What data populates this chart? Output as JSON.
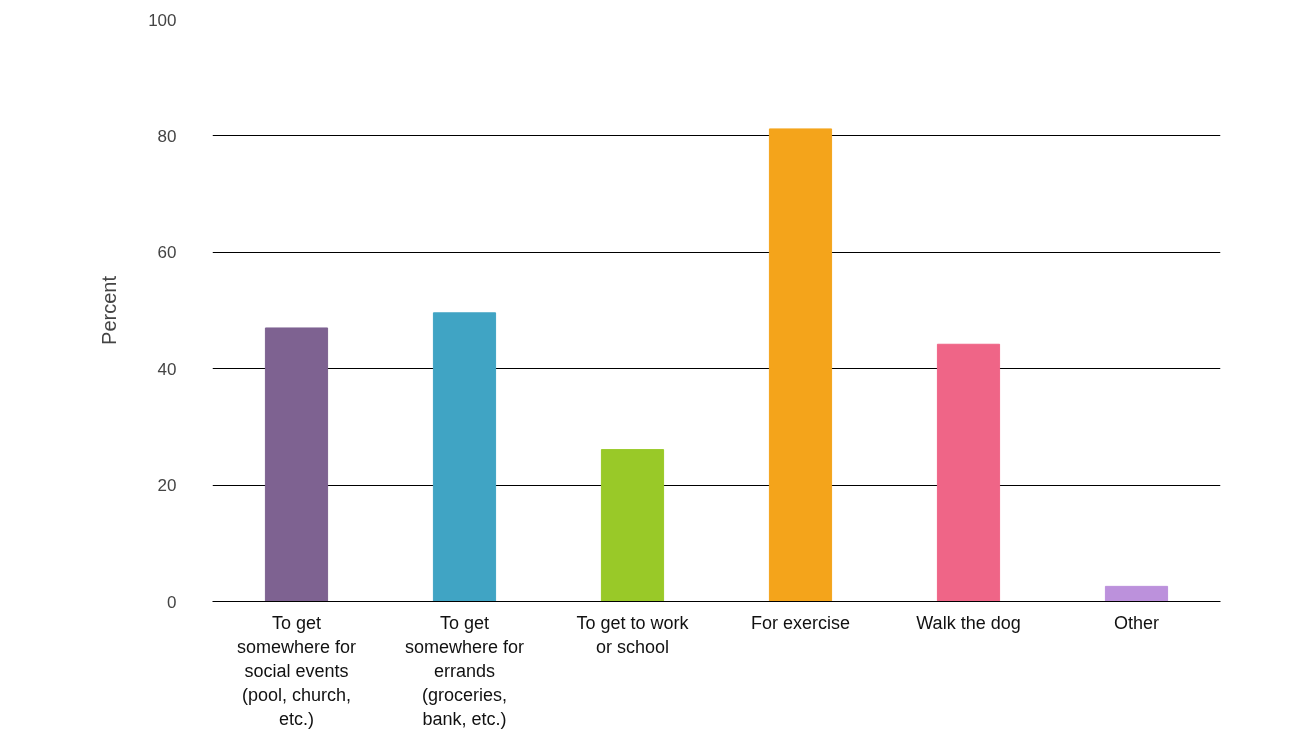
{
  "chart_data": {
    "type": "bar",
    "ylabel": "Percent",
    "categories": [
      "To get somewhere for social events (pool, church, etc.)",
      "To get somewhere for errands (groceries, bank, etc.)",
      "To get to work or school",
      "For exercise",
      "Walk the dog",
      "Other"
    ],
    "values": [
      47.0,
      49.6,
      26.1,
      81.2,
      44.2,
      2.6
    ],
    "colors": [
      "#7e6291",
      "#40a4c4",
      "#99c928",
      "#f4a41b",
      "#ef6587",
      "#bc91dc"
    ],
    "ylim": [
      0,
      100
    ],
    "yticks": [
      0,
      20,
      40,
      60,
      80,
      100
    ],
    "grid": "y"
  }
}
